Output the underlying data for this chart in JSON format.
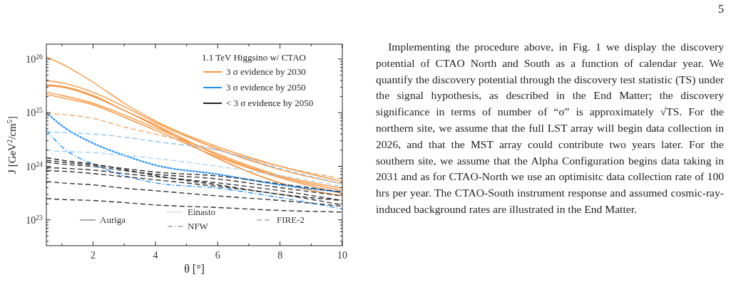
{
  "chart_data": {
    "type": "line",
    "legend_title": "1.1 TeV Higgsino w/ CTAO",
    "xlabel": "θ [°]",
    "ylabel": "J [GeV$^{2}$/cm$^{5}$]",
    "x": [
      0.5,
      1,
      2,
      3,
      4,
      6,
      8,
      10
    ],
    "xlim": [
      0.5,
      10
    ],
    "ylim": [
      3.3e+22,
      1.9e+26
    ],
    "log": "y",
    "legend": "top right",
    "grid": false,
    "xticks": [
      {
        "value": 1,
        "label": null
      },
      2,
      {
        "value": 3,
        "label": null
      },
      4,
      {
        "value": 5,
        "label": null
      },
      6,
      {
        "value": 7,
        "label": null
      },
      8,
      {
        "value": 9,
        "label": null
      },
      10
    ],
    "yticks": [
      {
        "value": 4e+22,
        "label": null
      },
      {
        "value": 5e+22,
        "label": null
      },
      {
        "value": 6e+22,
        "label": null
      },
      {
        "value": 7e+22,
        "label": null
      },
      {
        "value": 8e+22,
        "label": null
      },
      {
        "value": 9e+22,
        "label": null
      },
      {
        "value": 1e+23,
        "label": "10$^{23}$"
      },
      {
        "value": 2e+23,
        "label": null
      },
      {
        "value": 3e+23,
        "label": null
      },
      {
        "value": 4e+23,
        "label": null
      },
      {
        "value": 5e+23,
        "label": null
      },
      {
        "value": 6e+23,
        "label": null
      },
      {
        "value": 7e+23,
        "label": null
      },
      {
        "value": 8e+23,
        "label": null
      },
      {
        "value": 9e+23,
        "label": null
      },
      {
        "value": 1e+24,
        "label": "10$^{24}$"
      },
      {
        "value": 2e+24,
        "label": null
      },
      {
        "value": 3e+24,
        "label": null
      },
      {
        "value": 4e+24,
        "label": null
      },
      {
        "value": 5e+24,
        "label": null
      },
      {
        "value": 6e+24,
        "label": null
      },
      {
        "value": 7e+24,
        "label": null
      },
      {
        "value": 8e+24,
        "label": null
      },
      {
        "value": 9e+24,
        "label": null
      },
      {
        "value": 1e+25,
        "label": "10$^{25}$"
      },
      {
        "value": 2e+25,
        "label": null
      },
      {
        "value": 3e+25,
        "label": null
      },
      {
        "value": 4e+25,
        "label": null
      },
      {
        "value": 5e+25,
        "label": null
      },
      {
        "value": 6e+25,
        "label": null
      },
      {
        "value": 7e+25,
        "label": null
      },
      {
        "value": 8e+25,
        "label": null
      },
      {
        "value": 9e+25,
        "label": null
      },
      {
        "value": 1e+26,
        "label": "10$^{26}$"
      }
    ],
    "series": [
      {
        "name": "3 σ evidence by 2030",
        "color": "#f7953f",
        "line_style": "solid",
        "values": [
          1.1e+26,
          8.1e+25,
          3.7e+25,
          1.5e+25,
          7e+24,
          2.3e+24,
          1e+24,
          5.2e+23
        ]
      },
      {
        "color": "#f7953f",
        "line_style": "solid",
        "values": [
          4e+25,
          3.6e+25,
          2.4e+25,
          1.3e+25,
          6.6e+24,
          2.1e+24,
          8.7e+23,
          4.7e+23
        ]
      },
      {
        "color": "#f58a2c",
        "line_style": "solid",
        "values": [
          3.2e+25,
          3e+25,
          2e+25,
          1.1e+25,
          5.7e+24,
          1.4e+24,
          4.9e+23,
          2.8e+23
        ]
      },
      {
        "color": "#f7953f",
        "line_style": "solid",
        "values": [
          3.3e+25,
          3.1e+25,
          2.1e+25,
          1.1e+25,
          6e+24,
          1.6e+24,
          6.4e+23,
          3.5e+23
        ]
      },
      {
        "color": "#f7953f",
        "line_style": "solid",
        "values": [
          2.4e+25,
          2.1e+25,
          1.5e+25,
          9e+24,
          5.2e+24,
          1.7e+24,
          6.7e+23,
          3.9e+23
        ]
      },
      {
        "color": "#f7953f",
        "line_style": "solid",
        "values": [
          2.2e+25,
          1.9e+25,
          1.4e+25,
          8.2e+24,
          4.7e+24,
          1.5e+24,
          6.1e+23,
          3.1e+23
        ]
      },
      {
        "color": "#f7a45e",
        "line_style": "dashed",
        "values": [
          9.5e+24,
          9.3e+24,
          7.8e+24,
          5.4e+24,
          4e+24,
          2e+24,
          1e+24,
          5.8e+23
        ]
      },
      {
        "name": "3 σ evidence by 2050",
        "color": "#1e8fff",
        "line_style": "dotted",
        "values": [
          1e+25,
          5.7e+24,
          2.7e+24,
          1.6e+24,
          1.05e+24,
          7.1e+23,
          4.5e+23,
          3.3e+23
        ]
      },
      {
        "color": "#1e8fff",
        "line_style": "dashdot",
        "values": [
          4.7e+24,
          2.3e+24,
          1.1e+24,
          6.7e+23,
          4.9e+23,
          3.9e+23,
          2.6e+23,
          1.6e+23
        ]
      },
      {
        "color": "#8ec5f3",
        "line_style": "dashed",
        "values": [
          4.4e+24,
          4.3e+24,
          4e+24,
          3.5e+24,
          2.9e+24,
          2e+24,
          9.1e+23,
          4.7e+23
        ]
      },
      {
        "color": "#a8d2f6",
        "line_style": "dashed",
        "values": [
          2e+24,
          1.9e+24,
          1.8e+24,
          1.6e+24,
          1.4e+24,
          1e+24,
          6.7e+23,
          4.2e+23
        ]
      },
      {
        "name": "< 3 σ evidence by 2050",
        "color": "#222222",
        "line_style": "dashed",
        "values": [
          1.45e+24,
          1.3e+24,
          1.1e+24,
          8.7e+23,
          6.7e+23,
          4.5e+23,
          3e+23,
          2.3e+23
        ]
      },
      {
        "color": "#333333",
        "line_style": "dashed",
        "values": [
          1.3e+24,
          1.2e+24,
          1.05e+24,
          9.1e+23,
          7.8e+23,
          6.6e+23,
          4.7e+23,
          3.3e+23
        ]
      },
      {
        "color": "#333333",
        "line_style": "dashed",
        "values": [
          1.2e+24,
          1.1e+24,
          9.9e+23,
          8.3e+23,
          7.1e+23,
          5.8e+23,
          4e+23,
          2.8e+23
        ]
      },
      {
        "color": "#333333",
        "line_style": "dashed",
        "values": [
          9.5e+23,
          9.2e+23,
          8.5e+23,
          7.3e+23,
          6.4e+23,
          4.9e+23,
          3.5e+23,
          2.3e+23
        ]
      },
      {
        "color": "#333333",
        "line_style": "dashed",
        "values": [
          8.3e+23,
          8.1e+23,
          7.3e+23,
          6.4e+23,
          5.6e+23,
          4.2e+23,
          3e+23,
          1.9e+23
        ]
      },
      {
        "color": "#333333",
        "line_style": "dashed",
        "values": [
          5.2e+23,
          4.9e+23,
          4.5e+23,
          3.9e+23,
          3.5e+23,
          2.8e+23,
          2.3e+23,
          1.8e+23
        ]
      },
      {
        "color": "#333333",
        "line_style": "dashed",
        "values": [
          2.5e+23,
          2.4e+23,
          2.3e+23,
          2.1e+23,
          1.9e+23,
          1.7e+23,
          1.5e+23,
          1.4e+23
        ]
      }
    ],
    "annotations": [
      "Auriga",
      "Einasto",
      "NFW",
      "FIRE-2",
      "5",
      "Implementing the procedure above, in Fig. 1 we display the discovery potential of CTAO North and South as a function of calendar year. We quantify the discovery potential through the discovery test statistic (TS) under the signal hypothesis, as described in the End Matter; the discovery significance in terms of number of “σ” is approximately √TS. For the northern site, we assume that the full LST array will begin data collection in 2026, and that the MST array could contribute two years later. For the southern site, we assume that the Alpha Configuration begins data taking in 2031 and as for CTAO-North we use an optimisitc data collection rate of 100 hrs per year. The CTAO-South instrument response and assumed cosmic-ray-induced background rates are illustrated in the End Matter."
    ]
  }
}
